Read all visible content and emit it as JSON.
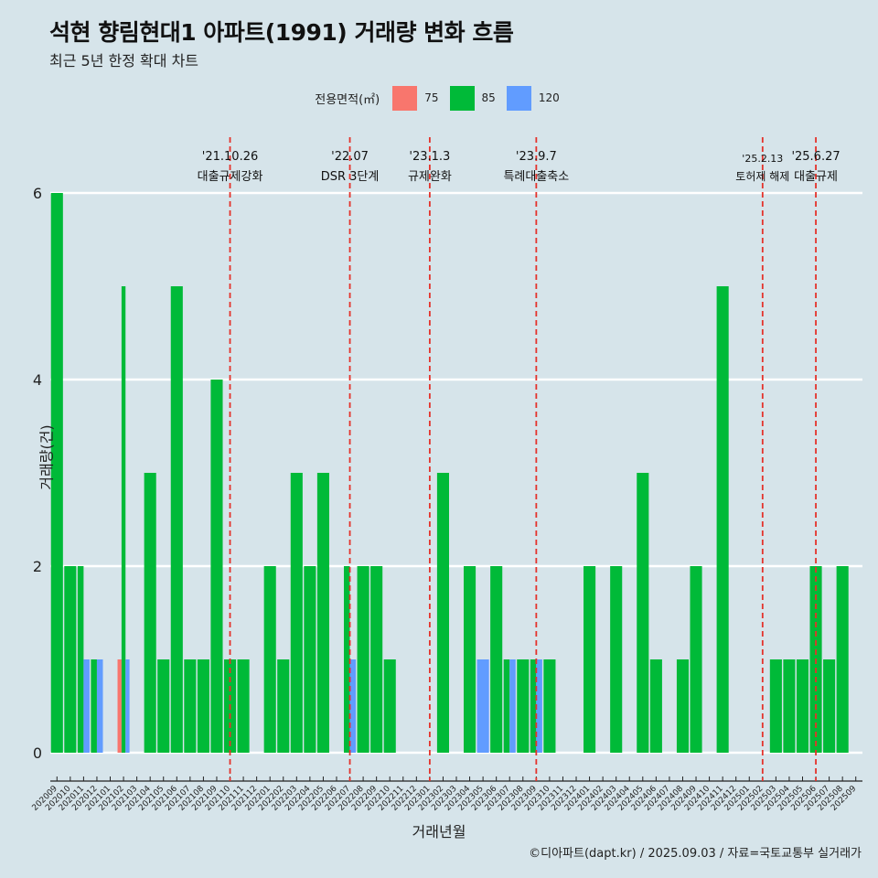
{
  "header": {
    "title": "석현 향림현대1 아파트(1991) 거래량 변화 흐름",
    "subtitle": "최근 5년 한정 확대 차트"
  },
  "legend": {
    "title": "전용면적(㎡)",
    "items": [
      {
        "label": "75",
        "color": "#f8766d"
      },
      {
        "label": "85",
        "color": "#00ba38"
      },
      {
        "label": "120",
        "color": "#619cff"
      }
    ]
  },
  "caption": "©디아파트(dapt.kr) / 2025.09.03 / 자료=국토교통부 실거래가",
  "chart_data": {
    "type": "bar",
    "title": "석현 향림현대1 아파트(1991) 거래량 변화 흐름",
    "subtitle": "최근 5년 한정 확대 차트",
    "xlabel": "거래년월",
    "ylabel": "거래량(건)",
    "ylim": [
      0,
      6
    ],
    "yticks": [
      0,
      2,
      4,
      6
    ],
    "grid": true,
    "legend_position": "top",
    "categories": [
      "202009",
      "202010",
      "202011",
      "202012",
      "202101",
      "202102",
      "202103",
      "202104",
      "202105",
      "202106",
      "202107",
      "202108",
      "202109",
      "202110",
      "202111",
      "202112",
      "202201",
      "202202",
      "202203",
      "202204",
      "202205",
      "202206",
      "202207",
      "202208",
      "202209",
      "202210",
      "202211",
      "202212",
      "202301",
      "202302",
      "202303",
      "202304",
      "202305",
      "202306",
      "202307",
      "202308",
      "202309",
      "202310",
      "202311",
      "202312",
      "202401",
      "202402",
      "202403",
      "202404",
      "202405",
      "202406",
      "202407",
      "202408",
      "202409",
      "202410",
      "202411",
      "202412",
      "202501",
      "202502",
      "202503",
      "202504",
      "202505",
      "202506",
      "202507",
      "202508",
      "202509"
    ],
    "series": [
      {
        "name": "75",
        "color": "#f8766d",
        "values": [
          0,
          0,
          0,
          0,
          0,
          1,
          0,
          0,
          0,
          0,
          0,
          0,
          0,
          0,
          0,
          0,
          0,
          0,
          0,
          0,
          0,
          0,
          0,
          0,
          0,
          0,
          0,
          0,
          0,
          0,
          0,
          0,
          0,
          0,
          0,
          0,
          0,
          0,
          0,
          0,
          0,
          0,
          0,
          0,
          0,
          0,
          0,
          0,
          0,
          0,
          0,
          0,
          0,
          0,
          0,
          0,
          0,
          0,
          0,
          0,
          0
        ]
      },
      {
        "name": "85",
        "color": "#00ba38",
        "values": [
          6,
          2,
          2,
          1,
          0,
          5,
          0,
          3,
          1,
          5,
          1,
          1,
          4,
          1,
          1,
          0,
          2,
          1,
          3,
          2,
          3,
          0,
          2,
          2,
          2,
          1,
          0,
          0,
          0,
          3,
          0,
          2,
          0,
          2,
          1,
          1,
          1,
          1,
          0,
          0,
          2,
          0,
          2,
          0,
          3,
          1,
          0,
          1,
          2,
          0,
          5,
          0,
          0,
          0,
          1,
          1,
          1,
          2,
          1,
          2,
          0
        ]
      },
      {
        "name": "120",
        "color": "#619cff",
        "values": [
          0,
          0,
          1,
          1,
          0,
          1,
          0,
          0,
          0,
          0,
          0,
          0,
          0,
          0,
          0,
          0,
          0,
          0,
          0,
          0,
          0,
          0,
          1,
          0,
          0,
          0,
          0,
          0,
          0,
          0,
          0,
          0,
          1,
          0,
          1,
          0,
          1,
          0,
          0,
          0,
          0,
          0,
          0,
          0,
          0,
          0,
          0,
          0,
          0,
          0,
          0,
          0,
          0,
          0,
          0,
          0,
          0,
          0,
          0,
          0,
          0
        ]
      }
    ],
    "annotations": [
      {
        "x": "202110",
        "date": "'21.10.26",
        "label": "대출규제강화"
      },
      {
        "x": "202207",
        "date": "'22.07",
        "label": "DSR 3단계"
      },
      {
        "x": "202301",
        "date": "'23.1.3",
        "label": "규제완화"
      },
      {
        "x": "202309",
        "date": "'23.9.7",
        "label": "특례대출축소"
      },
      {
        "x": "202502",
        "date": "'25.2.13",
        "label": "토허제 해제"
      },
      {
        "x": "202506",
        "date": "'25.6.27",
        "label": "대출규제"
      }
    ]
  }
}
